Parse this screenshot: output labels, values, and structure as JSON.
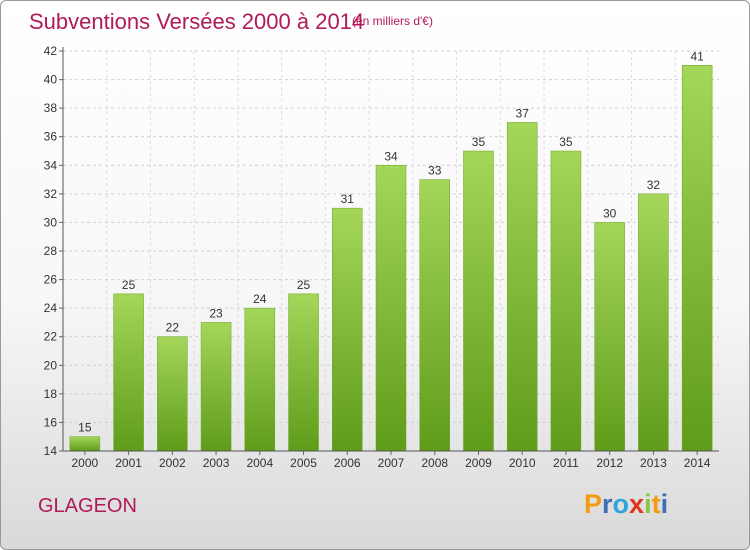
{
  "header": {
    "title": "Subventions Versées 2000 à 2014",
    "unit_note": "(en milliers d'€)"
  },
  "footer": {
    "city": "GLAGEON",
    "logo": {
      "letters": [
        "P",
        "r",
        "o",
        "x",
        "i",
        "t",
        "i"
      ],
      "colors": [
        "#f39c12",
        "#3b6fb6",
        "#2ea3dc",
        "#e0341c",
        "#8bc53f",
        "#f39c12",
        "#3b6fb6"
      ]
    }
  },
  "chart_data": {
    "type": "bar",
    "categories": [
      "2000",
      "2001",
      "2002",
      "2003",
      "2004",
      "2005",
      "2006",
      "2007",
      "2008",
      "2009",
      "2010",
      "2011",
      "2012",
      "2013",
      "2014"
    ],
    "values": [
      15,
      25,
      22,
      23,
      24,
      25,
      31,
      34,
      33,
      35,
      37,
      35,
      30,
      32,
      41
    ],
    "ylim": [
      14,
      42
    ],
    "yticks": [
      14,
      16,
      18,
      20,
      22,
      24,
      26,
      28,
      30,
      32,
      34,
      36,
      38,
      40,
      42
    ],
    "grid": true,
    "bar_color": "#7cb82f",
    "data_labels": true
  }
}
